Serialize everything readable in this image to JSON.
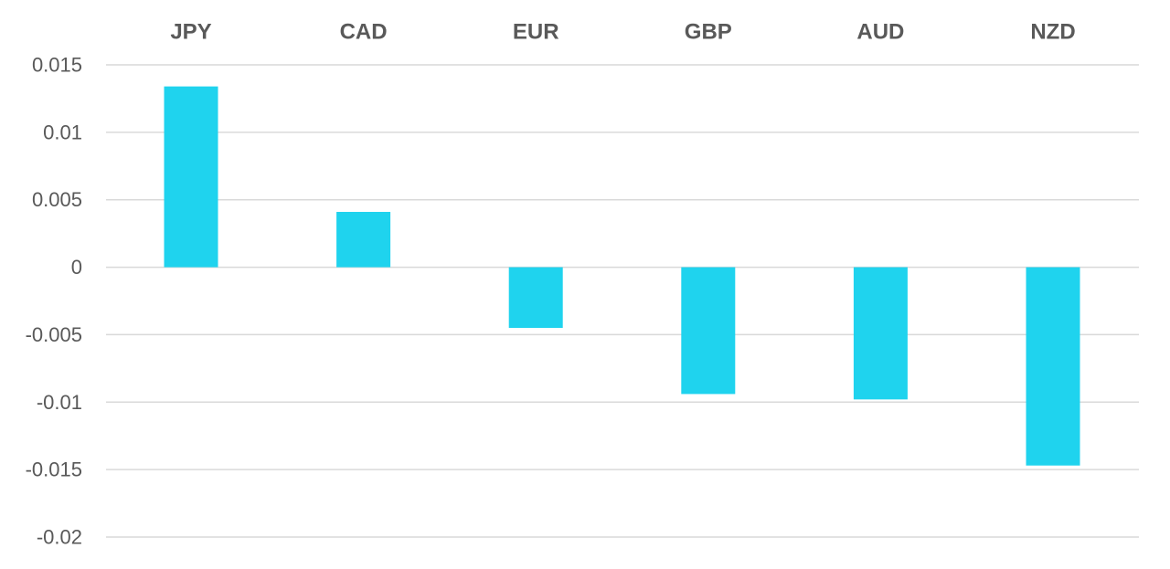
{
  "chart_data": {
    "type": "bar",
    "categories": [
      "JPY",
      "CAD",
      "EUR",
      "GBP",
      "AUD",
      "NZD"
    ],
    "values": [
      0.0134,
      0.0041,
      -0.0045,
      -0.0094,
      -0.0098,
      -0.0147
    ],
    "title": "",
    "xlabel": "",
    "ylabel": "",
    "ylim": [
      -0.02,
      0.015
    ],
    "yticks": [
      0.015,
      0.01,
      0.005,
      0,
      -0.005,
      -0.01,
      -0.015,
      -0.02
    ],
    "ytick_labels": [
      "0.015",
      "0.01",
      "0.005",
      "0",
      "-0.005",
      "-0.01",
      "-0.015",
      "-0.02"
    ],
    "category_label_position": "top",
    "grid": true,
    "bar_color": "#1fd3ee",
    "grid_color": "#d9d9d9",
    "text_color": "#595959"
  }
}
